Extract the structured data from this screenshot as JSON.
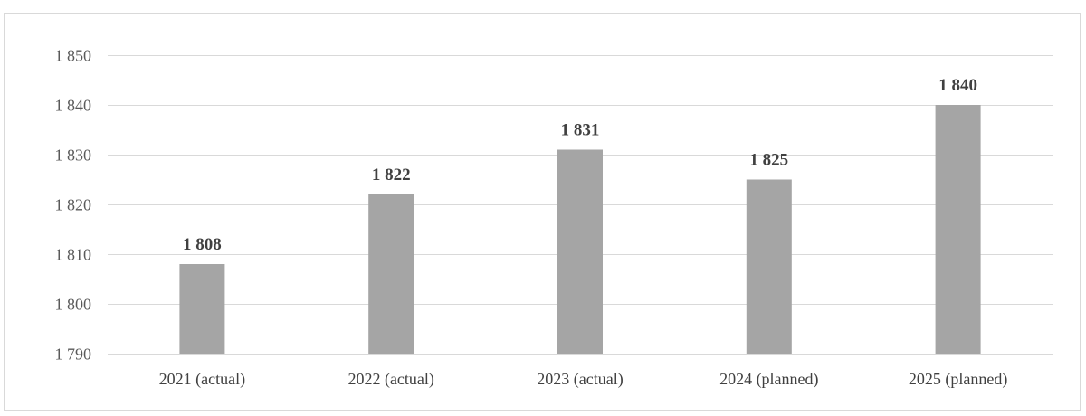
{
  "chart_data": {
    "type": "bar",
    "title": "",
    "xlabel": "",
    "ylabel": "",
    "categories": [
      "2021 (actual)",
      "2022 (actual)",
      "2023 (actual)",
      "2024 (planned)",
      "2025 (planned)"
    ],
    "values": [
      1808,
      1822,
      1831,
      1825,
      1840
    ],
    "data_labels": [
      "1 808",
      "1 822",
      "1 831",
      "1 825",
      "1 840"
    ],
    "ylim": [
      1790,
      1850
    ],
    "yticks": [
      1790,
      1800,
      1810,
      1820,
      1830,
      1840,
      1850
    ],
    "ytick_labels": [
      "1 790",
      "1 800",
      "1 810",
      "1 820",
      "1 830",
      "1 840",
      "1 850"
    ],
    "grid": true,
    "legend": "none",
    "bar_color": "#a5a5a5"
  }
}
